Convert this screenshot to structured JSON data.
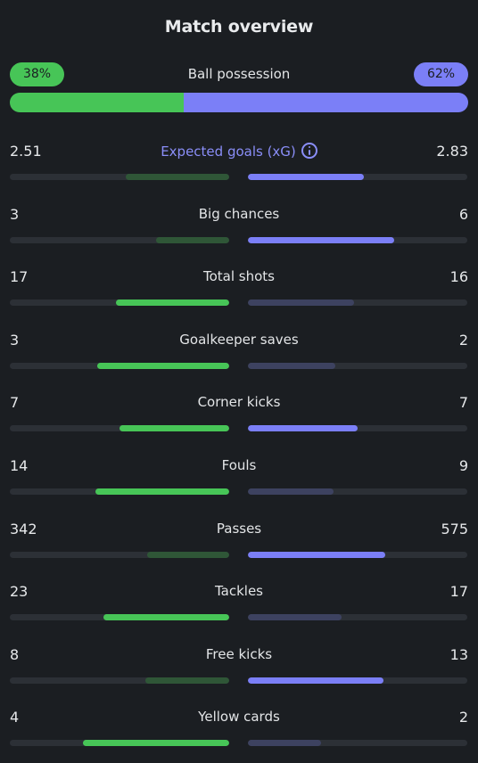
{
  "title": "Match overview",
  "possession": {
    "label": "Ball possession",
    "home": "38%",
    "away": "62%",
    "home_fraction": 0.38,
    "away_fraction": 0.62
  },
  "colors": {
    "home": "#47c557",
    "away": "#7b7ff7",
    "accent": "#8a8ef8",
    "background": "#1b1e22"
  },
  "stats": [
    {
      "name": "Expected goals (xG)",
      "home": "2.51",
      "away": "2.83",
      "home_num": 2.51,
      "away_num": 2.83,
      "accent": true,
      "info_icon": "info-icon"
    },
    {
      "name": "Big chances",
      "home": "3",
      "away": "6",
      "home_num": 3,
      "away_num": 6
    },
    {
      "name": "Total shots",
      "home": "17",
      "away": "16",
      "home_num": 17,
      "away_num": 16
    },
    {
      "name": "Goalkeeper saves",
      "home": "3",
      "away": "2",
      "home_num": 3,
      "away_num": 2
    },
    {
      "name": "Corner kicks",
      "home": "7",
      "away": "7",
      "home_num": 7,
      "away_num": 7
    },
    {
      "name": "Fouls",
      "home": "14",
      "away": "9",
      "home_num": 14,
      "away_num": 9
    },
    {
      "name": "Passes",
      "home": "342",
      "away": "575",
      "home_num": 342,
      "away_num": 575
    },
    {
      "name": "Tackles",
      "home": "23",
      "away": "17",
      "home_num": 23,
      "away_num": 17
    },
    {
      "name": "Free kicks",
      "home": "8",
      "away": "13",
      "home_num": 8,
      "away_num": 13
    },
    {
      "name": "Yellow cards",
      "home": "4",
      "away": "2",
      "home_num": 4,
      "away_num": 2
    }
  ]
}
